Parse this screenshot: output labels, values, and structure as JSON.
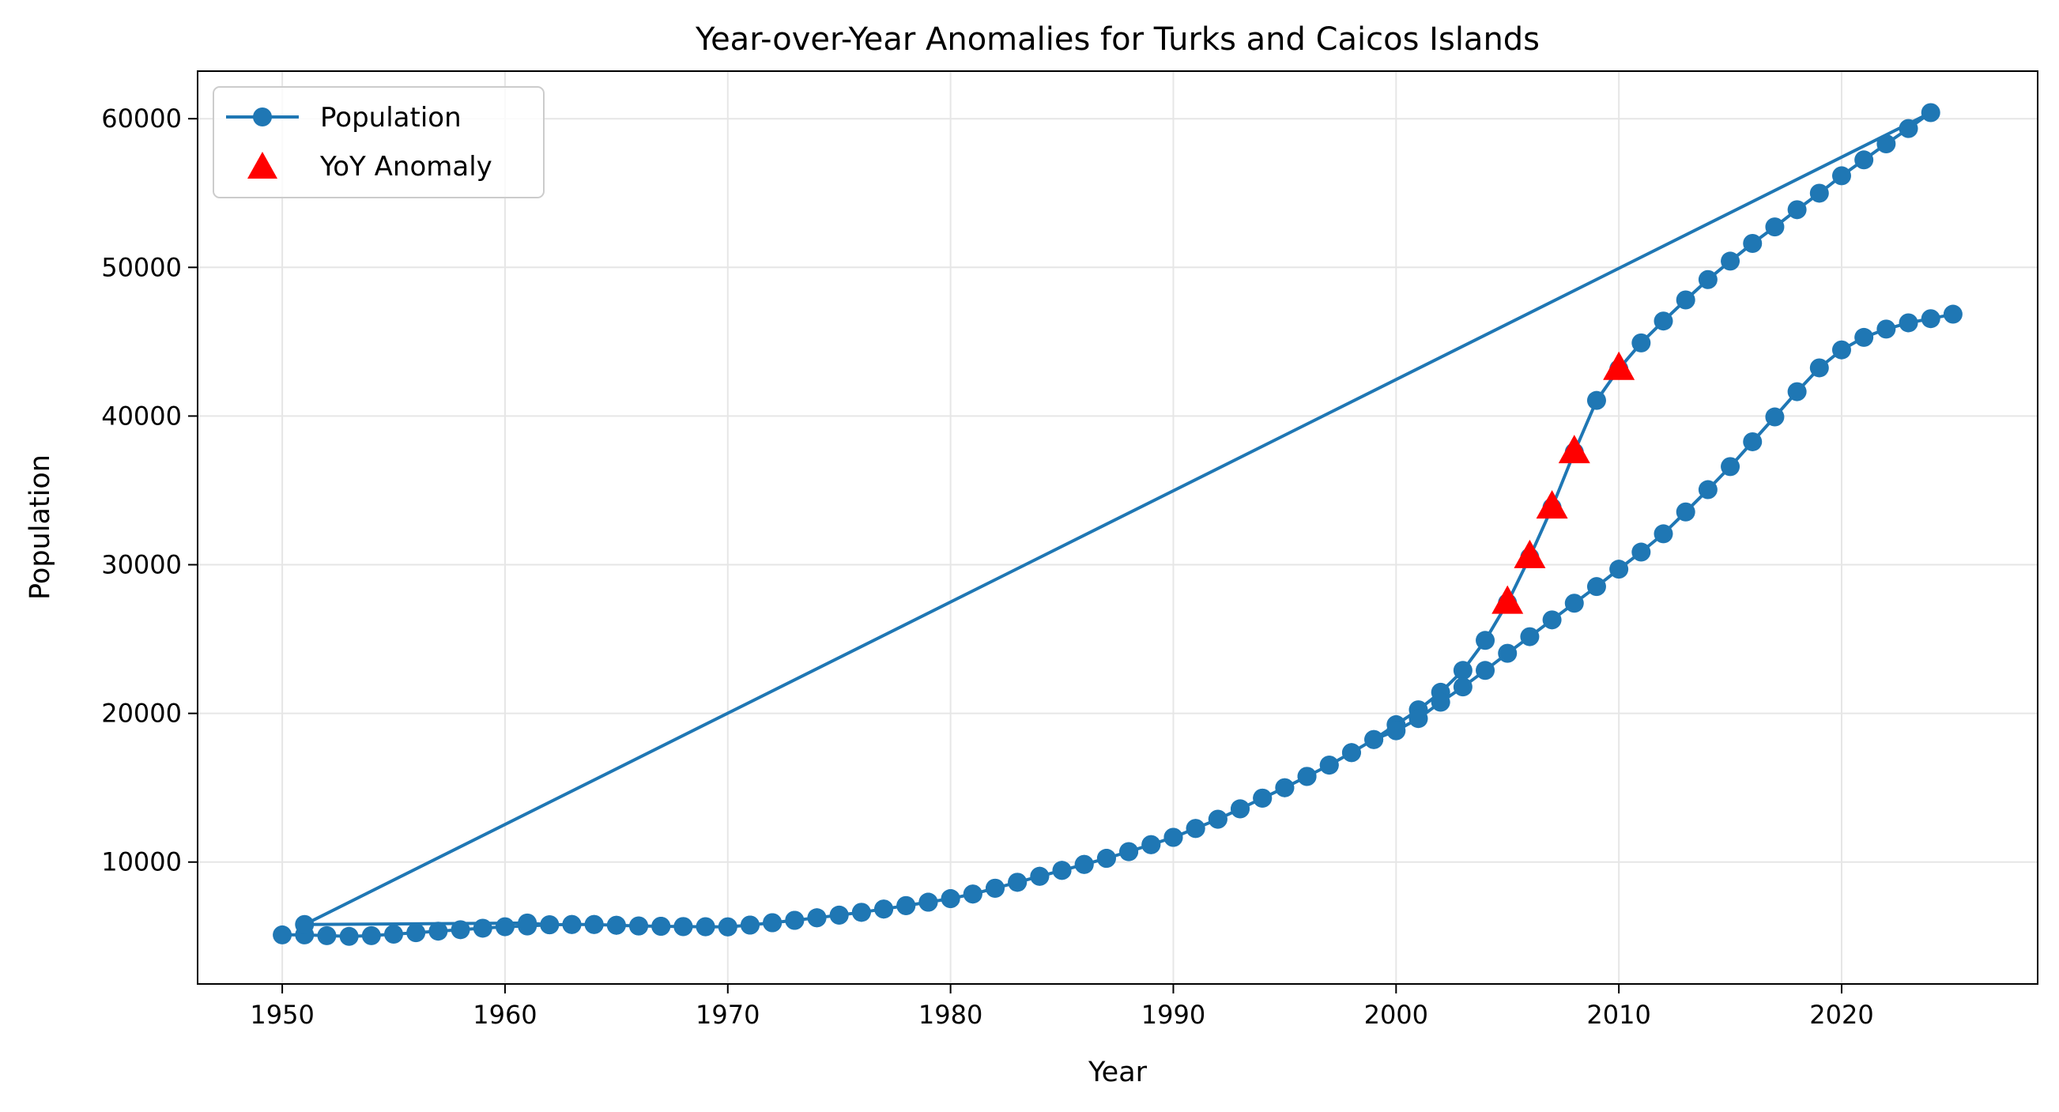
{
  "chart_data": {
    "type": "line",
    "title": "Year-over-Year Anomalies for Turks and Caicos Islands",
    "xlabel": "Year",
    "ylabel": "Population",
    "xlim": [
      1946.2,
      2028.8
    ],
    "ylim": [
      1800,
      63200
    ],
    "xticks": [
      1950,
      1960,
      1970,
      1980,
      1990,
      2000,
      2010,
      2020
    ],
    "yticks": [
      10000,
      20000,
      30000,
      40000,
      50000,
      60000
    ],
    "grid": true,
    "legend_position": "top-left",
    "colors": {
      "line": "#1f77b4",
      "anomaly": "#ff0000",
      "grid": "#e6e6e6"
    },
    "series": [
      {
        "name": "Population",
        "style": "line-with-circle-markers",
        "x": [
          1950,
          1951,
          1952,
          1953,
          1954,
          1955,
          1956,
          1957,
          1958,
          1959,
          1960,
          1961,
          1962,
          1963,
          1964,
          1965,
          1966,
          1967,
          1968,
          1969,
          1970,
          1971,
          1972,
          1973,
          1974,
          1975,
          1976,
          1977,
          1978,
          1979,
          1980,
          1981,
          1982,
          1983,
          1984,
          1985,
          1986,
          1987,
          1988,
          1989,
          1990,
          1991,
          1992,
          1993,
          1994,
          1995,
          1996,
          1997,
          1998,
          1999,
          2000,
          2001,
          2002,
          2003,
          2004,
          2005,
          2006,
          2007,
          2008,
          2009,
          2010,
          2011,
          2012,
          2013,
          2014,
          2015,
          2016,
          2017,
          2018,
          2019,
          2020,
          2021,
          2022,
          2023,
          2024,
          1951,
          1961,
          1962,
          1963,
          1964,
          1965,
          1966,
          1967,
          1968,
          1969,
          1970,
          1971,
          1972,
          1973,
          1974,
          1975,
          1976,
          1977,
          1978,
          1979,
          1980,
          1981,
          1982,
          1983,
          1984,
          1985,
          1986,
          1987,
          1988,
          1989,
          1990,
          1991,
          1992,
          1993,
          1994,
          1995,
          1996,
          1997,
          1998,
          1999,
          2000,
          2001,
          2002,
          2003,
          2004,
          2005,
          2006,
          2007,
          2008,
          2009,
          2010,
          2011,
          2012,
          2013,
          2014,
          2015,
          2016,
          2017,
          2018,
          2019,
          2020,
          2021,
          2022,
          2023,
          2024,
          2025
        ],
        "y": [
          5100,
          5100,
          5050,
          5000,
          5050,
          5150,
          5250,
          5350,
          5450,
          5550,
          5650,
          5700,
          5780,
          5800,
          5800,
          5750,
          5700,
          5680,
          5660,
          5650,
          5640,
          5760,
          5920,
          6080,
          6250,
          6430,
          6620,
          6840,
          7070,
          7300,
          7540,
          7850,
          8240,
          8640,
          9040,
          9440,
          9840,
          10250,
          10700,
          11170,
          11660,
          12260,
          12880,
          13580,
          14300,
          15000,
          15760,
          16520,
          17360,
          18240,
          19240,
          20240,
          21420,
          22890,
          24910,
          27440,
          30510,
          33850,
          37570,
          41050,
          43170,
          44920,
          46390,
          47810,
          49180,
          50420,
          51610,
          52720,
          53880,
          54990,
          56160,
          57230,
          58310,
          59340,
          60410,
          5800,
          5900,
          5780,
          5800,
          5800,
          5750,
          5700,
          5680,
          5660,
          5650,
          5640,
          5760,
          5920,
          6080,
          6250,
          6430,
          6620,
          6840,
          7070,
          7300,
          7540,
          7850,
          8240,
          8640,
          9040,
          9440,
          9840,
          10250,
          10700,
          11170,
          11660,
          12260,
          12880,
          13580,
          14300,
          15000,
          15760,
          16520,
          17360,
          18240,
          18830,
          19650,
          20750,
          21780,
          22890,
          24040,
          25160,
          26290,
          27410,
          28530,
          29700,
          30850,
          32080,
          33550,
          35050,
          36600,
          38270,
          39940,
          41640,
          43240,
          44450,
          45290,
          45850,
          46270,
          46550,
          46850
        ]
      },
      {
        "name": "YoY Anomaly",
        "style": "red-triangle-markers",
        "x": [
          2005,
          2006,
          2007,
          2008,
          2010
        ],
        "y": [
          27440,
          30510,
          33850,
          37570,
          43170
        ]
      }
    ]
  }
}
